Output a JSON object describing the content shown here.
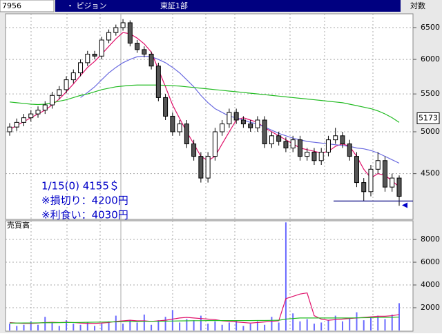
{
  "header": {
    "code": "7956",
    "name": "・ ピジョン",
    "market": "東証1部",
    "scale_label": "対数"
  },
  "chart_data": {
    "type": "candlestick",
    "log_scale": true,
    "grid": true,
    "ylim": [
      4010,
      6730
    ],
    "yticks": [
      4500,
      5000,
      5500,
      6000,
      6500
    ],
    "open": [
      5000,
      5060,
      5120,
      5180,
      5230,
      5280,
      5350,
      5480,
      5560,
      5700,
      5800,
      5950,
      6080,
      6050,
      6300,
      6420,
      6500,
      6580,
      6250,
      6150,
      6080,
      5900,
      5450,
      5200,
      5000,
      5100,
      4850,
      4700,
      4450,
      4700,
      5000,
      5100,
      5250,
      5150,
      5100,
      5050,
      5150,
      4850,
      4950,
      4880,
      4800,
      4900,
      4700,
      4750,
      4650,
      4750,
      4900,
      4950,
      4850,
      4700,
      4400,
      4300,
      4550,
      4650,
      4350,
      4450
    ],
    "high": [
      5110,
      5170,
      5230,
      5280,
      5330,
      5400,
      5530,
      5610,
      5750,
      5850,
      6000,
      6130,
      6130,
      6350,
      6470,
      6550,
      6640,
      6620,
      6300,
      6200,
      6120,
      5950,
      5500,
      5250,
      5150,
      5150,
      4900,
      4750,
      4750,
      5050,
      5150,
      5300,
      5300,
      5200,
      5150,
      5200,
      5200,
      5000,
      5000,
      4930,
      4950,
      4950,
      4800,
      4800,
      4800,
      4950,
      5050,
      5000,
      4900,
      4750,
      4450,
      4600,
      4750,
      4700,
      4500,
      4480
    ],
    "low": [
      4950,
      5010,
      5070,
      5130,
      5180,
      5230,
      5300,
      5430,
      5510,
      5650,
      5750,
      5900,
      6000,
      6000,
      6250,
      6370,
      6450,
      6200,
      6100,
      6030,
      5850,
      5400,
      5150,
      4950,
      4950,
      4800,
      4650,
      4400,
      4400,
      4650,
      4950,
      5050,
      5100,
      5050,
      5000,
      5000,
      4800,
      4800,
      4830,
      4750,
      4750,
      4650,
      4650,
      4600,
      4600,
      4700,
      4850,
      4800,
      4650,
      4350,
      4200,
      4250,
      4500,
      4300,
      4300,
      4150
    ],
    "close": [
      5060,
      5120,
      5180,
      5230,
      5280,
      5350,
      5480,
      5560,
      5700,
      5800,
      5950,
      6080,
      6050,
      6300,
      6420,
      6500,
      6580,
      6250,
      6150,
      6080,
      5900,
      5450,
      5200,
      5000,
      5100,
      4850,
      4700,
      4450,
      4700,
      5000,
      5100,
      5250,
      5150,
      5100,
      5050,
      5150,
      4850,
      4950,
      4880,
      4800,
      4900,
      4700,
      4750,
      4650,
      4750,
      4900,
      4950,
      4850,
      4700,
      4400,
      4300,
      4550,
      4650,
      4350,
      4450,
      4250
    ],
    "up_color": "#ffffff",
    "down_color": "#555555",
    "moving_averages": [
      {
        "color": "#e0106a",
        "values": [
          5030,
          5080,
          5130,
          5180,
          5230,
          5280,
          5350,
          5430,
          5530,
          5640,
          5760,
          5880,
          5970,
          6080,
          6200,
          6320,
          6420,
          6400,
          6330,
          6240,
          6110,
          5850,
          5600,
          5350,
          5170,
          5000,
          4850,
          4700,
          4650,
          4700,
          4850,
          5000,
          5150,
          5180,
          5150,
          5120,
          5050,
          5000,
          4950,
          4900,
          4850,
          4800,
          4780,
          4760,
          4740,
          4760,
          4820,
          4850,
          4820,
          4700,
          4550,
          4450,
          4500,
          4480,
          4420,
          4350
        ]
      },
      {
        "color": "#6a6ae0",
        "values": [
          null,
          null,
          null,
          null,
          null,
          null,
          null,
          null,
          null,
          null,
          5450,
          5520,
          5600,
          5700,
          5800,
          5880,
          5950,
          6000,
          6040,
          6050,
          6040,
          6000,
          5950,
          5880,
          5800,
          5700,
          5600,
          5480,
          5380,
          5300,
          5250,
          5200,
          5180,
          5150,
          5120,
          5100,
          5060,
          5020,
          4980,
          4950,
          4920,
          4900,
          4880,
          4870,
          4860,
          4850,
          4840,
          4830,
          4820,
          4800,
          4790,
          4770,
          4740,
          4700,
          4660,
          4620
        ]
      },
      {
        "color": "#22bb22",
        "values": [
          5390,
          5380,
          5370,
          5360,
          5355,
          5360,
          5380,
          5400,
          5420,
          5450,
          5480,
          5500,
          5530,
          5560,
          5580,
          5600,
          5610,
          5620,
          5625,
          5625,
          5625,
          5625,
          5620,
          5615,
          5610,
          5600,
          5590,
          5580,
          5570,
          5560,
          5550,
          5540,
          5530,
          5520,
          5510,
          5500,
          5490,
          5480,
          5470,
          5460,
          5450,
          5440,
          5430,
          5420,
          5410,
          5400,
          5390,
          5380,
          5360,
          5340,
          5320,
          5300,
          5270,
          5230,
          5180,
          5120
        ]
      }
    ],
    "price_box": 5173,
    "reference_line": 4200,
    "marker": 4155,
    "annotations": [
      "1/15(0) 4155＄",
      "※損切り：4200円",
      "※利食い：4030円"
    ],
    "volume": {
      "label": "売買高",
      "color": "#6a6aff",
      "ylim": [
        0,
        9640
      ],
      "yticks": [
        2000,
        4000,
        6000,
        8000
      ],
      "values": [
        600,
        400,
        500,
        800,
        500,
        1200,
        700,
        400,
        900,
        600,
        500,
        700,
        400,
        600,
        800,
        1300,
        600,
        900,
        700,
        1400,
        500,
        900,
        1200,
        1800,
        700,
        1000,
        900,
        1300,
        600,
        800,
        500,
        700,
        900,
        400,
        600,
        800,
        500,
        1200,
        700,
        9500,
        1500,
        800,
        1000,
        600,
        700,
        900,
        1300,
        800,
        1100,
        1600,
        900,
        1200,
        1300,
        1000,
        1400,
        2400
      ],
      "moving_averages": [
        {
          "color": "#e0106a",
          "values": [
            700,
            650,
            620,
            620,
            650,
            700,
            720,
            700,
            720,
            700,
            650,
            620,
            620,
            650,
            700,
            800,
            850,
            900,
            850,
            850,
            800,
            850,
            900,
            1000,
            1100,
            1150,
            1100,
            1050,
            1000,
            950,
            850,
            800,
            750,
            700,
            650,
            700,
            750,
            800,
            850,
            2800,
            3000,
            3200,
            3300,
            1300,
            1000,
            900,
            950,
            1000,
            1050,
            1100,
            1150,
            1200,
            1250,
            1250,
            1300,
            1400
          ]
        },
        {
          "color": "#22bb22",
          "values": [
            650,
            650,
            660,
            660,
            670,
            680,
            680,
            690,
            700,
            700,
            710,
            720,
            730,
            740,
            750,
            760,
            770,
            780,
            790,
            800,
            800,
            810,
            820,
            830,
            840,
            850,
            860,
            860,
            870,
            870,
            870,
            870,
            870,
            870,
            870,
            880,
            880,
            890,
            900,
            1000,
            1050,
            1100,
            1100,
            1100,
            1100,
            1100,
            1100,
            1100,
            1100,
            1110,
            1120,
            1130,
            1140,
            1150,
            1160,
            1180
          ]
        }
      ]
    }
  }
}
